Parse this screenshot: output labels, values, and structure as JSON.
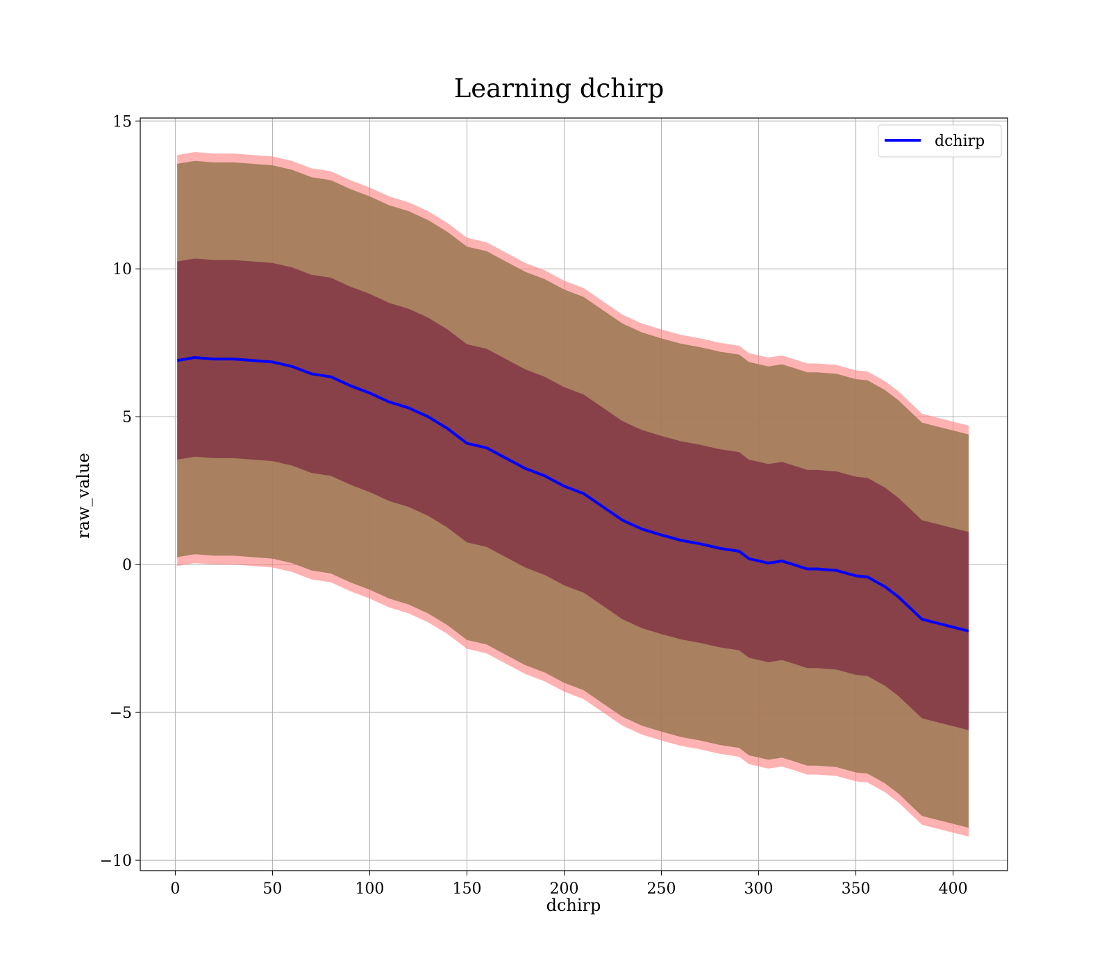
{
  "chart_data": {
    "type": "area",
    "title": "Learning dchirp",
    "xlabel": "dchirp",
    "ylabel": "raw_value",
    "xlim": [
      -18,
      428
    ],
    "ylim": [
      -10.35,
      15.1
    ],
    "xticks": [
      0,
      50,
      100,
      150,
      200,
      250,
      300,
      350,
      400
    ],
    "yticks": [
      -10,
      -5,
      0,
      5,
      10,
      15
    ],
    "xtick_labels": [
      "0",
      "50",
      "100",
      "150",
      "200",
      "250",
      "300",
      "350",
      "400"
    ],
    "ytick_labels": [
      "−10",
      "−5",
      "0",
      "5",
      "10",
      "15"
    ],
    "grid": true,
    "legend": {
      "position": "top-right",
      "entries": [
        "dchirp"
      ]
    },
    "series": [
      {
        "name": "dchirp",
        "color": "#0000ff",
        "x": [
          1,
          10,
          20,
          30,
          40,
          50,
          60,
          70,
          80,
          90,
          100,
          110,
          120,
          130,
          140,
          150,
          160,
          170,
          180,
          190,
          200,
          210,
          220,
          230,
          240,
          250,
          260,
          270,
          280,
          290,
          295,
          305,
          312,
          318,
          325,
          330,
          340,
          350,
          356,
          365,
          372,
          384,
          408
        ],
        "values": [
          6.9,
          7.0,
          6.95,
          6.95,
          6.9,
          6.85,
          6.7,
          6.45,
          6.35,
          6.05,
          5.8,
          5.5,
          5.3,
          5.0,
          4.6,
          4.1,
          3.95,
          3.6,
          3.25,
          3.0,
          2.65,
          2.4,
          1.95,
          1.5,
          1.2,
          1.0,
          0.82,
          0.7,
          0.55,
          0.45,
          0.2,
          0.05,
          0.12,
          0.0,
          -0.15,
          -0.15,
          -0.2,
          -0.38,
          -0.42,
          -0.75,
          -1.1,
          -1.85,
          -2.25
        ]
      }
    ],
    "bands": [
      {
        "role": "outer",
        "color": "#ff7f7f",
        "upper_offset": 6.95,
        "lower_offset": -6.95
      },
      {
        "role": "middle",
        "color": "#a07a56",
        "upper_offset": 6.65,
        "lower_offset": -6.65
      },
      {
        "role": "inner",
        "color": "#7a2640",
        "upper_offset": 3.35,
        "lower_offset": -3.35
      }
    ]
  }
}
